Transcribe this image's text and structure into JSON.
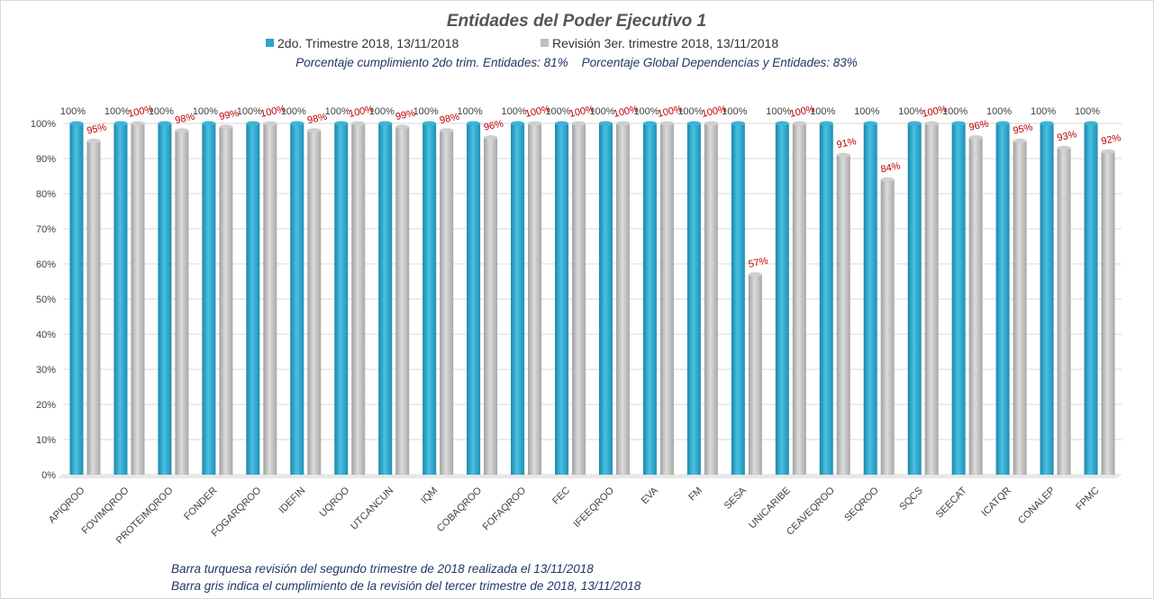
{
  "chart_data": {
    "type": "bar",
    "title": "Entidades del Poder Ejecutivo 1",
    "subtitle": "Porcentaje cumplimiento 2do trim. Entidades: 81%    Porcentaje Global Dependencias y Entidades: 83%",
    "categories": [
      "APIQROO",
      "FOVIMQROO",
      "PROTEIMQROO",
      "FONDER",
      "FOGARQROO",
      "IDEFIN",
      "UQROO",
      "UTCANCUN",
      "IQM",
      "COBAQROO",
      "FOFAQROO",
      "FEC",
      "IFEEQROO",
      "EVA",
      "FM",
      "SESA",
      "UNICARIBE",
      "CEAVEQROO",
      "SEQROO",
      "SQCS",
      "SEECAT",
      "ICATQR",
      "CONALEP",
      "FPMC"
    ],
    "series": [
      {
        "name": "2do. Trimestre 2018, 13/11/2018",
        "color": "#2ea3c7",
        "values": [
          100,
          100,
          100,
          100,
          100,
          100,
          100,
          100,
          100,
          100,
          100,
          100,
          100,
          100,
          100,
          100,
          100,
          100,
          100,
          100,
          100,
          100,
          100,
          100
        ]
      },
      {
        "name": "Revisión 3er. trimestre 2018, 13/11/2018",
        "color": "#c0c0c0",
        "values": [
          95,
          100,
          98,
          99,
          100,
          98,
          100,
          99,
          98,
          96,
          100,
          100,
          100,
          100,
          100,
          57,
          100,
          91,
          84,
          100,
          96,
          95,
          93,
          92
        ]
      }
    ],
    "ylim": [
      0,
      100
    ],
    "yticks": [
      "0%",
      "10%",
      "20%",
      "30%",
      "40%",
      "50%",
      "60%",
      "70%",
      "80%",
      "90%",
      "100%"
    ],
    "grid": true,
    "legend_position": "top"
  },
  "notes": [
    "Barra turquesa revisión del segundo trimestre de 2018 realizada el 13/11/2018",
    "Barra gris indica el cumplimiento de la revisión del tercer trimestre de 2018, 13/11/2018"
  ]
}
